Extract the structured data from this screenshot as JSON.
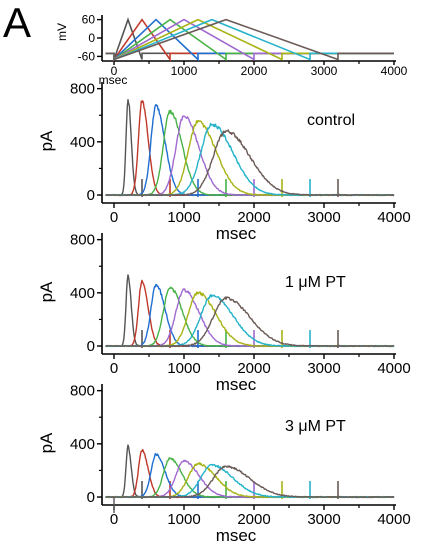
{
  "panel_letter": "A",
  "colors": [
    "#555555",
    "#c0392b",
    "#1f6fd1",
    "#47b347",
    "#a06ad0",
    "#a8b315",
    "#26b3c9",
    "#6b5b57"
  ],
  "chart_data": [
    {
      "type": "line",
      "name": "voltage-protocol",
      "xlabel": "msec",
      "ylabel": "mV",
      "xlim": [
        0,
        4000
      ],
      "ylim": [
        -75,
        75
      ],
      "xticks": [
        "0",
        "1000",
        "2000",
        "3000",
        "4000"
      ],
      "yticks": [
        "60",
        "0",
        "-60"
      ],
      "ytick_values": [
        60,
        0,
        -60
      ],
      "hold_mV": -50,
      "ramp_start_mV": -70,
      "ramp_peak_mV": 60,
      "ramp_end_mV": -70,
      "ramp_start_ms": 0,
      "ramp_peak_ms": [
        200,
        400,
        600,
        800,
        1000,
        1200,
        1400,
        1600
      ],
      "ramp_end_ms": [
        400,
        800,
        1200,
        1600,
        2000,
        2400,
        2800,
        3200
      ],
      "grid": false
    },
    {
      "type": "line",
      "name": "control",
      "label": "control",
      "xlabel": "msec",
      "ylabel": "pA",
      "xlim": [
        0,
        4000
      ],
      "ylim": [
        -60,
        850
      ],
      "xticks": [
        "0",
        "1000",
        "2000",
        "3000",
        "4000"
      ],
      "yticks": [
        "800",
        "400",
        "0"
      ],
      "ytick_values": [
        800,
        400,
        0
      ],
      "peak_time_ms": [
        200,
        400,
        600,
        800,
        1000,
        1200,
        1400,
        1600
      ],
      "peak_pA": [
        720,
        710,
        670,
        630,
        590,
        550,
        530,
        480
      ],
      "end_ms": [
        400,
        800,
        1200,
        1600,
        2000,
        2400,
        2800,
        3200
      ],
      "grid": false
    },
    {
      "type": "line",
      "name": "1uM-PT",
      "label": "1 μM PT",
      "xlabel": "msec",
      "ylabel": "pA",
      "xlim": [
        0,
        4000
      ],
      "ylim": [
        -60,
        850
      ],
      "xticks": [
        "0",
        "1000",
        "2000",
        "3000",
        "4000"
      ],
      "yticks": [
        "800",
        "400",
        "0"
      ],
      "ytick_values": [
        800,
        400,
        0
      ],
      "peak_time_ms": [
        200,
        400,
        600,
        800,
        1000,
        1200,
        1400,
        1600
      ],
      "peak_pA": [
        530,
        490,
        460,
        440,
        420,
        400,
        380,
        360
      ],
      "end_ms": [
        400,
        800,
        1200,
        1600,
        2000,
        2400,
        2800,
        3200
      ],
      "grid": false
    },
    {
      "type": "line",
      "name": "3uM-PT",
      "label": "3 μM PT",
      "xlabel": "msec",
      "ylabel": "pA",
      "xlim": [
        0,
        4000
      ],
      "ylim": [
        -60,
        850
      ],
      "xticks": [
        "0",
        "1000",
        "2000",
        "3000",
        "4000"
      ],
      "yticks": [
        "800",
        "400",
        "0"
      ],
      "ytick_values": [
        800,
        400,
        0
      ],
      "peak_time_ms": [
        200,
        400,
        600,
        800,
        1000,
        1200,
        1400,
        1600
      ],
      "peak_pA": [
        380,
        350,
        320,
        290,
        270,
        250,
        240,
        230
      ],
      "end_ms": [
        400,
        800,
        1200,
        1600,
        2000,
        2400,
        2800,
        3200
      ],
      "grid": false
    }
  ]
}
